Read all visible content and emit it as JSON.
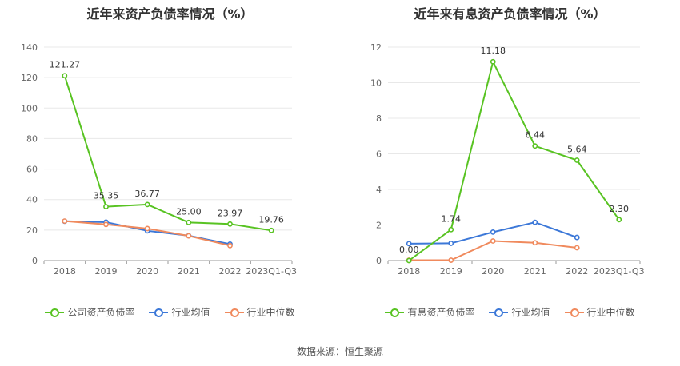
{
  "source": "数据来源：恒生聚源",
  "colors": {
    "company": "#58c322",
    "industry_avg": "#3c78d8",
    "industry_median": "#f08a5d"
  },
  "chart_data": [
    {
      "type": "line",
      "title": "近年来资产负债率情况（%）",
      "categories": [
        "2018",
        "2019",
        "2020",
        "2021",
        "2022",
        "2023Q1-Q3"
      ],
      "ylim": [
        0,
        140
      ],
      "yticks": [
        0,
        20,
        40,
        60,
        80,
        100,
        120,
        140
      ],
      "grid": true,
      "legend": "bottom",
      "series": [
        {
          "name": "公司资产负债率",
          "key": "company",
          "values": [
            121.27,
            35.35,
            36.77,
            25.0,
            23.97,
            19.76
          ],
          "labels": [
            "121.27",
            "35.35",
            "36.77",
            "25.00",
            "23.97",
            "19.76"
          ]
        },
        {
          "name": "行业均值",
          "key": "industry_avg",
          "values": [
            25.8,
            25.2,
            19.5,
            16.3,
            10.8,
            null
          ]
        },
        {
          "name": "行业中位数",
          "key": "industry_median",
          "values": [
            25.9,
            23.7,
            21.0,
            16.2,
            9.8,
            null
          ]
        }
      ]
    },
    {
      "type": "line",
      "title": "近年来有息资产负债率情况（%）",
      "categories": [
        "2018",
        "2019",
        "2020",
        "2021",
        "2022",
        "2023Q1-Q3"
      ],
      "ylim": [
        0,
        12
      ],
      "yticks": [
        0,
        2,
        4,
        6,
        8,
        10,
        12
      ],
      "grid": true,
      "legend": "bottom",
      "series": [
        {
          "name": "有息资产负债率",
          "key": "company",
          "values": [
            0.0,
            1.74,
            11.18,
            6.44,
            5.64,
            2.3
          ],
          "labels": [
            "0.00",
            "1.74",
            "11.18",
            "6.44",
            "5.64",
            "2.30"
          ]
        },
        {
          "name": "行业均值",
          "key": "industry_avg",
          "values": [
            0.95,
            0.97,
            1.6,
            2.15,
            1.3,
            null
          ]
        },
        {
          "name": "行业中位数",
          "key": "industry_median",
          "values": [
            0.02,
            0.02,
            1.1,
            1.0,
            0.72,
            null
          ]
        }
      ]
    }
  ]
}
